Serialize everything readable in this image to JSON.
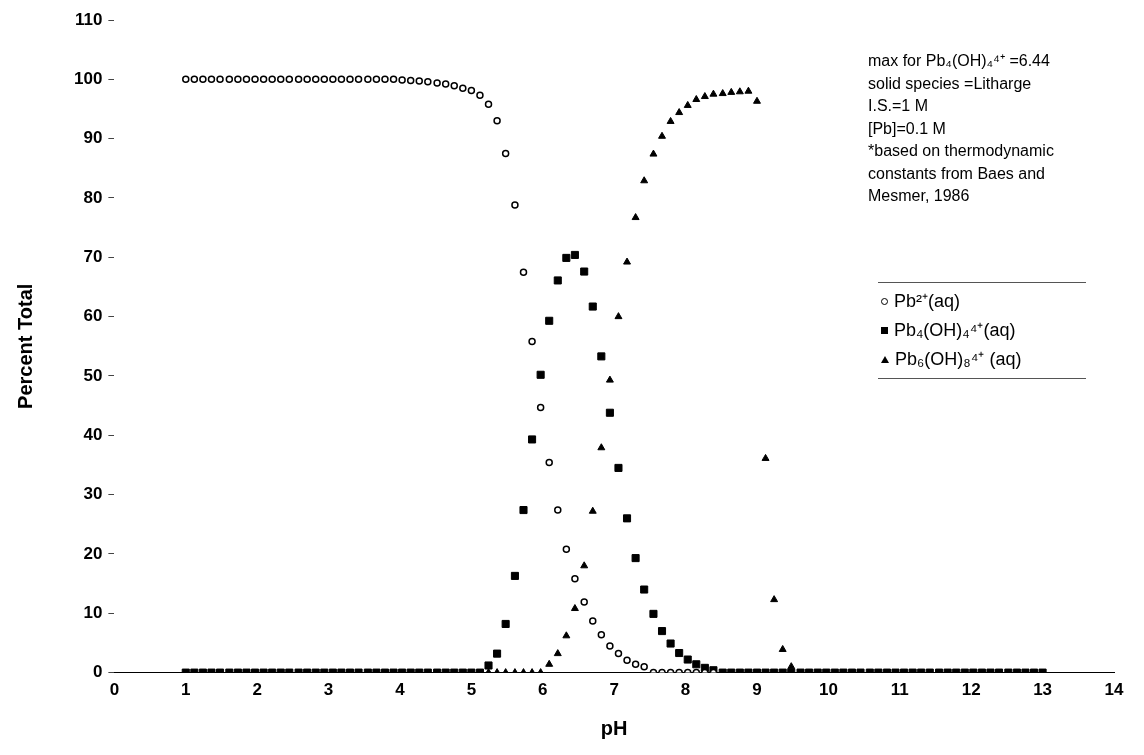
{
  "chart_data": {
    "type": "scatter",
    "xlabel": "pH",
    "ylabel": "Percent Total",
    "xlim": [
      0,
      14
    ],
    "xticks": [
      0,
      1,
      2,
      3,
      4,
      5,
      6,
      7,
      8,
      9,
      10,
      11,
      12,
      13,
      14
    ],
    "ylim": [
      0,
      110
    ],
    "yticks": [
      0,
      10,
      20,
      30,
      40,
      50,
      60,
      70,
      80,
      90,
      100,
      110
    ],
    "grid": false,
    "legend": "right",
    "annotations": [
      "max for Pb₄(OH)₄⁴⁺ =6.44",
      "solid species =Litharge",
      "I.S.=1 M",
      "[Pb]=0.1 M",
      "*based on thermodynamic constants from Baes and Mesmer, 1986"
    ],
    "x": [
      1,
      1.12,
      1.24,
      1.36,
      1.48,
      1.61,
      1.73,
      1.85,
      1.97,
      2.09,
      2.21,
      2.33,
      2.45,
      2.58,
      2.7,
      2.82,
      2.94,
      3.06,
      3.18,
      3.3,
      3.42,
      3.55,
      3.67,
      3.79,
      3.91,
      4.03,
      4.15,
      4.27,
      4.39,
      4.52,
      4.64,
      4.76,
      4.88,
      5,
      5.12,
      5.24,
      5.36,
      5.48,
      5.61,
      5.73,
      5.85,
      5.97,
      6.09,
      6.21,
      6.33,
      6.45,
      6.58,
      6.7,
      6.82,
      6.94,
      7.06,
      7.18,
      7.3,
      7.42,
      7.55,
      7.67,
      7.79,
      7.91,
      8.03,
      8.15,
      8.27,
      8.39,
      8.52,
      8.64,
      8.76,
      8.88,
      9,
      9.12,
      9.24,
      9.36,
      9.48,
      9.61,
      9.73,
      9.85,
      9.97,
      10.09,
      10.21,
      10.33,
      10.45,
      10.58,
      10.7,
      10.82,
      10.94,
      11.06,
      11.18,
      11.3,
      11.42,
      11.55,
      11.67,
      11.79,
      11.91,
      12.03,
      12.15,
      12.27,
      12.39,
      12.52,
      12.64,
      12.76,
      12.88,
      13
    ],
    "series": [
      {
        "name": "Pb²⁺(aq)",
        "color": "#000000",
        "marker": "circle",
        "values": [
          100,
          100,
          100,
          100,
          100,
          100,
          100,
          100,
          100,
          100,
          100,
          100,
          100,
          100,
          100,
          100,
          100,
          100,
          100,
          100,
          100,
          100,
          100,
          100,
          100,
          99.9,
          99.8,
          99.7,
          99.6,
          99.4,
          99.2,
          98.9,
          98.5,
          98.1,
          97.3,
          95.8,
          93,
          87.5,
          78.8,
          67.5,
          55.8,
          44.7,
          35.4,
          27.4,
          20.8,
          15.8,
          11.9,
          8.7,
          6.4,
          4.5,
          3.2,
          2.1,
          1.4,
          1,
          0,
          0,
          0,
          0,
          0,
          0,
          0,
          0,
          null,
          null,
          null,
          null,
          null,
          null,
          null,
          null,
          null,
          null,
          null,
          null,
          null,
          null,
          null,
          null,
          null,
          null,
          null,
          null,
          null,
          null,
          null,
          null,
          null,
          null,
          null,
          null,
          null,
          null,
          null,
          null,
          null,
          null,
          null,
          null,
          null,
          null
        ]
      },
      {
        "name": "Pb₄(OH)₄⁴⁺(aq)",
        "color": "#000000",
        "marker": "square",
        "values": [
          0,
          0,
          0,
          0,
          0,
          0,
          0,
          0,
          0,
          0,
          0,
          0,
          0,
          0,
          0,
          0,
          0,
          0,
          0,
          0,
          0,
          0,
          0,
          0,
          0,
          0,
          0,
          0,
          0,
          0,
          0,
          0,
          0,
          0,
          0,
          1.2,
          3.2,
          8.2,
          16.3,
          27.4,
          39.3,
          50.2,
          59.3,
          66.1,
          69.9,
          70.4,
          67.6,
          61.7,
          53.3,
          43.8,
          34.5,
          26,
          19.3,
          14,
          9.9,
          7,
          4.9,
          3.3,
          2.2,
          1.4,
          0.8,
          0.4,
          0,
          0,
          0,
          0,
          0,
          0,
          0,
          0,
          0,
          0,
          0,
          0,
          0,
          0,
          0,
          0,
          0,
          0,
          0,
          0,
          0,
          0,
          0,
          0,
          0,
          0,
          0,
          0,
          0,
          0,
          0,
          0,
          0,
          0,
          0,
          0,
          0,
          0
        ]
      },
      {
        "name": "Pb₆(OH)₈⁴⁺ (aq)",
        "color": "#000000",
        "marker": "triangle",
        "values": [
          null,
          null,
          null,
          null,
          null,
          null,
          null,
          null,
          null,
          null,
          null,
          null,
          null,
          null,
          null,
          null,
          null,
          null,
          null,
          null,
          null,
          null,
          null,
          null,
          null,
          null,
          null,
          null,
          null,
          null,
          null,
          null,
          null,
          null,
          null,
          0,
          0,
          0,
          0,
          0,
          0,
          0,
          1.4,
          3.2,
          6.2,
          10.8,
          18,
          27.2,
          37.9,
          49.3,
          60,
          69.2,
          76.7,
          82.9,
          87.4,
          90.4,
          92.9,
          94.4,
          95.6,
          96.6,
          97.1,
          97.5,
          97.6,
          97.8,
          97.9,
          98,
          96.3,
          36.1,
          12.3,
          3.9,
          1,
          null,
          null,
          null,
          null,
          null,
          null,
          null,
          null,
          null,
          null,
          null,
          null,
          null,
          null,
          null,
          null,
          null,
          null,
          null,
          null,
          null,
          null,
          null,
          null,
          null,
          null,
          null,
          null,
          null
        ]
      }
    ]
  }
}
